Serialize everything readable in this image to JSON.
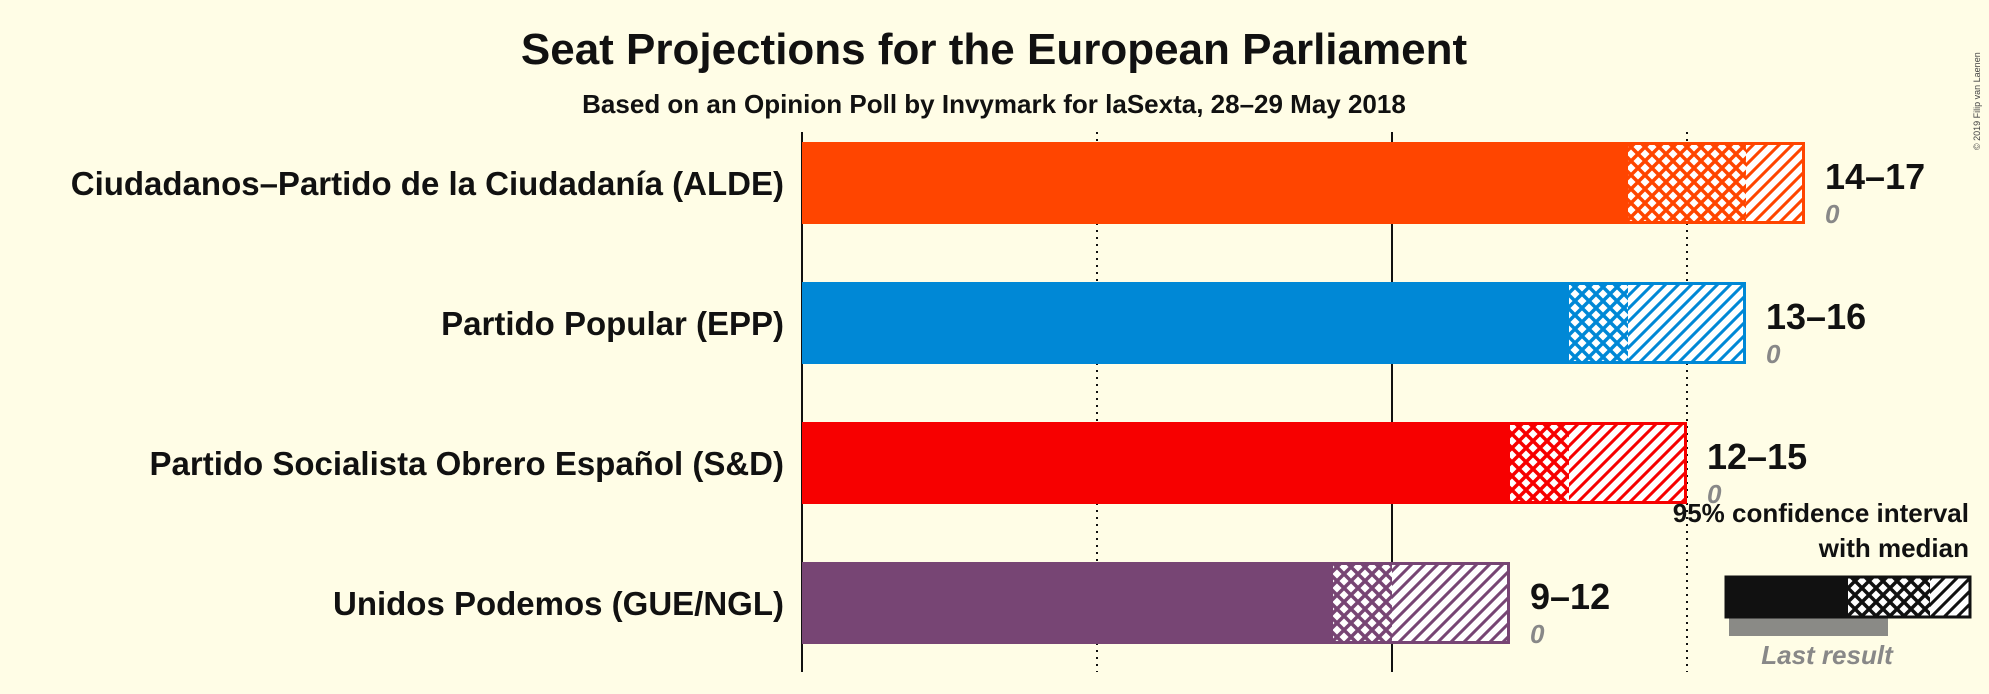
{
  "chart_data": {
    "type": "bar",
    "title": "Seat Projections for the European Parliament",
    "subtitle": "Based on an Opinion Poll by Invymark for laSexta, 28–29 May 2018",
    "xlim": [
      0,
      20
    ],
    "parties": [
      {
        "name": "Ciudadanos–Partido de la Ciudadanía (ALDE)",
        "color": "#ff4500",
        "low": 14,
        "median": 16,
        "high": 17,
        "range_label": "14–17",
        "last_result": 0,
        "last_label": "0"
      },
      {
        "name": "Partido Popular (EPP)",
        "color": "#0088d6",
        "low": 13,
        "median": 14,
        "high": 16,
        "range_label": "13–16",
        "last_result": 0,
        "last_label": "0"
      },
      {
        "name": "Partido Socialista Obrero Español (S&D)",
        "color": "#f70000",
        "low": 12,
        "median": 13,
        "high": 15,
        "range_label": "12–15",
        "last_result": 0,
        "last_label": "0"
      },
      {
        "name": "Unidos Podemos (GUE/NGL)",
        "color": "#774574",
        "low": 9,
        "median": 10,
        "high": 12,
        "range_label": "9–12",
        "last_result": 0,
        "last_label": "0"
      }
    ],
    "legend": {
      "line1": "95% confidence interval",
      "line2": "with median",
      "last_result": "Last result"
    },
    "copyright": "© 2019 Filip van Laenen"
  }
}
